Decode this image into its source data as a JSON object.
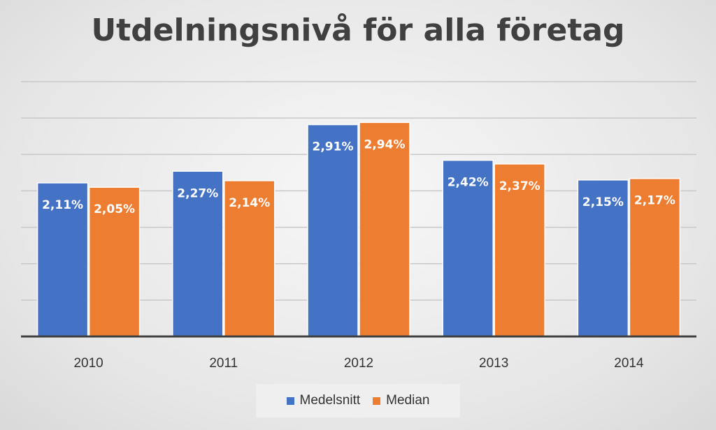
{
  "chart_data": {
    "type": "bar",
    "title": "Utdelningsnivå för alla företag",
    "categories": [
      "2010",
      "2011",
      "2012",
      "2013",
      "2014"
    ],
    "series": [
      {
        "name": "Medelsnitt",
        "color": "#4472C4",
        "values": [
          2.11,
          2.27,
          2.91,
          2.42,
          2.15
        ],
        "labels": [
          "2,11%",
          "2,27%",
          "2,91%",
          "2,42%",
          "2,15%"
        ]
      },
      {
        "name": "Median",
        "color": "#ED7D31",
        "values": [
          2.05,
          2.14,
          2.94,
          2.37,
          2.17
        ],
        "labels": [
          "2,05%",
          "2,14%",
          "2,94%",
          "2,37%",
          "2,17%"
        ]
      }
    ],
    "ylim": [
      0,
      3.5
    ],
    "y_axis_visible": false,
    "grid": true,
    "legend_position": "bottom"
  }
}
